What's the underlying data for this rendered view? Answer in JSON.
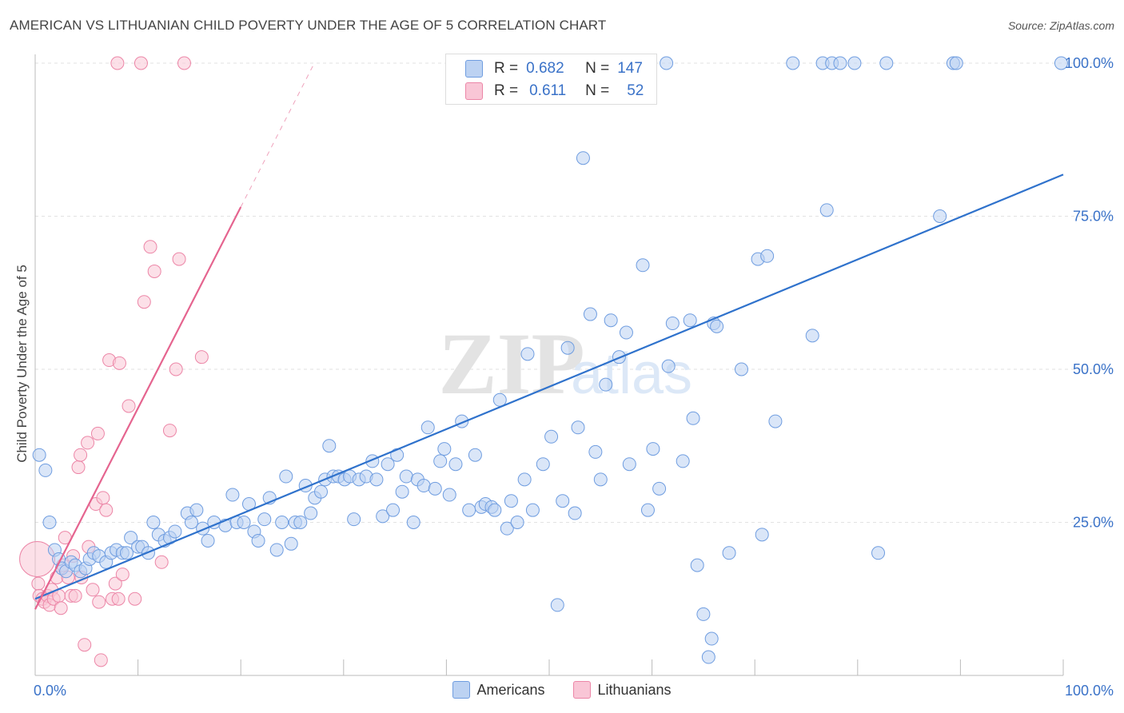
{
  "title": "AMERICAN VS LITHUANIAN CHILD POVERTY UNDER THE AGE OF 5 CORRELATION CHART",
  "source": "Source: ZipAtlas.com",
  "watermark": {
    "zip": "ZIP",
    "atlas": "atlas"
  },
  "colors": {
    "american": "#6f9de0",
    "american_fill": "#bcd2f2",
    "american_line": "#2f72cc",
    "lithuanian": "#ec86a7",
    "lithuanian_fill": "#f9c6d6",
    "lithuanian_line": "#e5648f",
    "axis_label": "#3a72c8"
  },
  "stats": {
    "americans": {
      "r_label": "R =",
      "r": "0.682",
      "n_label": "N =",
      "n": "147"
    },
    "lithuanians": {
      "r_label": "R =",
      "r": "0.611",
      "n_label": "N =",
      "n": "52"
    }
  },
  "legend": {
    "americans": "Americans",
    "lithuanians": "Lithuanians"
  },
  "chart_data": {
    "type": "scatter",
    "title": "AMERICAN VS LITHUANIAN CHILD POVERTY UNDER THE AGE OF 5 CORRELATION CHART",
    "ylabel": "Child Poverty Under the Age of 5",
    "xlabel": "",
    "xlim": [
      0,
      100
    ],
    "ylim": [
      0,
      100
    ],
    "x_tick_labels": [
      {
        "value": 0,
        "label": "0.0%"
      },
      {
        "value": 100,
        "label": "100.0%"
      }
    ],
    "y_tick_labels": [
      {
        "value": 25,
        "label": "25.0%"
      },
      {
        "value": 50,
        "label": "50.0%"
      },
      {
        "value": 75,
        "label": "75.0%"
      },
      {
        "value": 100,
        "label": "100.0%"
      }
    ],
    "grid": true,
    "legend_position": "bottom-center",
    "series": [
      {
        "name": "Americans",
        "trendline": {
          "x": [
            0,
            100
          ],
          "y": [
            12.5,
            81.8
          ]
        },
        "points": [
          [
            0.4,
            36
          ],
          [
            1,
            33.5
          ],
          [
            1.4,
            25
          ],
          [
            1.9,
            20.5
          ],
          [
            2.3,
            19
          ],
          [
            2.6,
            17.5
          ],
          [
            3,
            17
          ],
          [
            3.5,
            18.5
          ],
          [
            3.9,
            18
          ],
          [
            4.4,
            17
          ],
          [
            4.9,
            17.5
          ],
          [
            5.3,
            19
          ],
          [
            5.7,
            20
          ],
          [
            6.2,
            19.5
          ],
          [
            6.9,
            18.5
          ],
          [
            7.4,
            20
          ],
          [
            7.9,
            20.5
          ],
          [
            8.5,
            20
          ],
          [
            8.9,
            20
          ],
          [
            9.3,
            22.5
          ],
          [
            10,
            21
          ],
          [
            10.4,
            21
          ],
          [
            11,
            20
          ],
          [
            11.5,
            25
          ],
          [
            12,
            23
          ],
          [
            12.6,
            22
          ],
          [
            13.1,
            22.5
          ],
          [
            13.6,
            23.5
          ],
          [
            14.8,
            26.5
          ],
          [
            15.2,
            25
          ],
          [
            15.7,
            27
          ],
          [
            16.3,
            24
          ],
          [
            16.8,
            22
          ],
          [
            17.4,
            25
          ],
          [
            18.5,
            24.5
          ],
          [
            19.2,
            29.5
          ],
          [
            19.6,
            25
          ],
          [
            20.3,
            25
          ],
          [
            20.8,
            28
          ],
          [
            21.3,
            23.5
          ],
          [
            21.7,
            22
          ],
          [
            22.3,
            25.5
          ],
          [
            22.8,
            29
          ],
          [
            23.5,
            20.5
          ],
          [
            24,
            25
          ],
          [
            24.4,
            32.5
          ],
          [
            24.9,
            21.5
          ],
          [
            25.3,
            25
          ],
          [
            25.8,
            25
          ],
          [
            26.3,
            31
          ],
          [
            26.8,
            26.5
          ],
          [
            27.2,
            29
          ],
          [
            27.8,
            30
          ],
          [
            28.2,
            32
          ],
          [
            28.6,
            37.5
          ],
          [
            29,
            32.5
          ],
          [
            29.5,
            32.5
          ],
          [
            30.1,
            32
          ],
          [
            30.6,
            32.5
          ],
          [
            31,
            25.5
          ],
          [
            31.5,
            32
          ],
          [
            32.2,
            32.5
          ],
          [
            32.8,
            35
          ],
          [
            33.2,
            32
          ],
          [
            33.8,
            26
          ],
          [
            34.3,
            34.5
          ],
          [
            34.8,
            27
          ],
          [
            35.2,
            36
          ],
          [
            35.7,
            30
          ],
          [
            36.1,
            32.5
          ],
          [
            36.8,
            25
          ],
          [
            37.2,
            32
          ],
          [
            37.8,
            31
          ],
          [
            38.2,
            40.5
          ],
          [
            38.9,
            30.5
          ],
          [
            39.4,
            35
          ],
          [
            39.8,
            37
          ],
          [
            40.3,
            29.5
          ],
          [
            40.9,
            34.5
          ],
          [
            41.5,
            41.5
          ],
          [
            42.2,
            27
          ],
          [
            42.8,
            36
          ],
          [
            43.4,
            27.5
          ],
          [
            43.8,
            28
          ],
          [
            44.4,
            27.5
          ],
          [
            44.7,
            27
          ],
          [
            45.2,
            45
          ],
          [
            45.9,
            24
          ],
          [
            46.3,
            28.5
          ],
          [
            46.9,
            25
          ],
          [
            47.6,
            32
          ],
          [
            47.9,
            52.5
          ],
          [
            48.4,
            27
          ],
          [
            49.4,
            34.5
          ],
          [
            49.7,
            95
          ],
          [
            50.2,
            39
          ],
          [
            50.8,
            11.5
          ],
          [
            51.3,
            28.5
          ],
          [
            51.8,
            53.5
          ],
          [
            52.5,
            26.5
          ],
          [
            52.8,
            40.5
          ],
          [
            53.3,
            84.5
          ],
          [
            54,
            59
          ],
          [
            54.5,
            36.5
          ],
          [
            55,
            32
          ],
          [
            55.5,
            47.5
          ],
          [
            56,
            58
          ],
          [
            56.8,
            52
          ],
          [
            57.5,
            56
          ],
          [
            57.8,
            34.5
          ],
          [
            58.5,
            96.5
          ],
          [
            58.6,
            100
          ],
          [
            59.1,
            67
          ],
          [
            59.6,
            27
          ],
          [
            60.1,
            37
          ],
          [
            60.7,
            30.5
          ],
          [
            61.4,
            100
          ],
          [
            61.6,
            50.5
          ],
          [
            62,
            57.5
          ],
          [
            63,
            35
          ],
          [
            63.7,
            58
          ],
          [
            64,
            42
          ],
          [
            64.4,
            18
          ],
          [
            65,
            10
          ],
          [
            65.5,
            3
          ],
          [
            65.8,
            6
          ],
          [
            66,
            57.5
          ],
          [
            66.3,
            57
          ],
          [
            67.5,
            20
          ],
          [
            68.7,
            50
          ],
          [
            70.3,
            68
          ],
          [
            70.7,
            23
          ],
          [
            71.2,
            68.5
          ],
          [
            72,
            41.5
          ],
          [
            73.7,
            100
          ],
          [
            75.6,
            55.5
          ],
          [
            76.6,
            100
          ],
          [
            77,
            76
          ],
          [
            77.5,
            100
          ],
          [
            78.3,
            100
          ],
          [
            79.7,
            100
          ],
          [
            82,
            20
          ],
          [
            82.8,
            100
          ],
          [
            88,
            75
          ],
          [
            89.3,
            100
          ],
          [
            89.6,
            100
          ],
          [
            99.8,
            100
          ]
        ]
      },
      {
        "name": "Lithuanians",
        "trendline": {
          "x": [
            0,
            20
          ],
          "y": [
            10.8,
            76.5
          ]
        },
        "trendline_extended": {
          "x": [
            20,
            27
          ],
          "y": [
            76.5,
            99.5
          ]
        },
        "points": [
          [
            0.2,
            19
          ],
          [
            0.3,
            15
          ],
          [
            0.4,
            13
          ],
          [
            0.7,
            12.5
          ],
          [
            0.9,
            12
          ],
          [
            1.2,
            13
          ],
          [
            1.4,
            11.5
          ],
          [
            1.6,
            14
          ],
          [
            1.8,
            12.5
          ],
          [
            2.1,
            16
          ],
          [
            2.3,
            13
          ],
          [
            2.5,
            11
          ],
          [
            2.7,
            18
          ],
          [
            2.9,
            22.5
          ],
          [
            3.2,
            16
          ],
          [
            3.5,
            13
          ],
          [
            3.7,
            19.5
          ],
          [
            3.9,
            13
          ],
          [
            4.2,
            34
          ],
          [
            4.4,
            36
          ],
          [
            4.5,
            16
          ],
          [
            4.8,
            5
          ],
          [
            5.1,
            38
          ],
          [
            5.2,
            21
          ],
          [
            5.6,
            14
          ],
          [
            5.9,
            28
          ],
          [
            6.1,
            39.5
          ],
          [
            6.2,
            12
          ],
          [
            6.4,
            2.5
          ],
          [
            6.6,
            29
          ],
          [
            6.9,
            27
          ],
          [
            7.2,
            51.5
          ],
          [
            7.5,
            12.5
          ],
          [
            7.8,
            15
          ],
          [
            8,
            100
          ],
          [
            8.1,
            12.5
          ],
          [
            8.2,
            51
          ],
          [
            8.5,
            16.5
          ],
          [
            9.1,
            44
          ],
          [
            9.7,
            12.5
          ],
          [
            10.3,
            100
          ],
          [
            10.6,
            61
          ],
          [
            11.2,
            70
          ],
          [
            11.6,
            66
          ],
          [
            12.3,
            18.5
          ],
          [
            13.1,
            40
          ],
          [
            13.7,
            50
          ],
          [
            14,
            68
          ],
          [
            14.5,
            100
          ],
          [
            16.2,
            52
          ]
        ]
      }
    ]
  }
}
